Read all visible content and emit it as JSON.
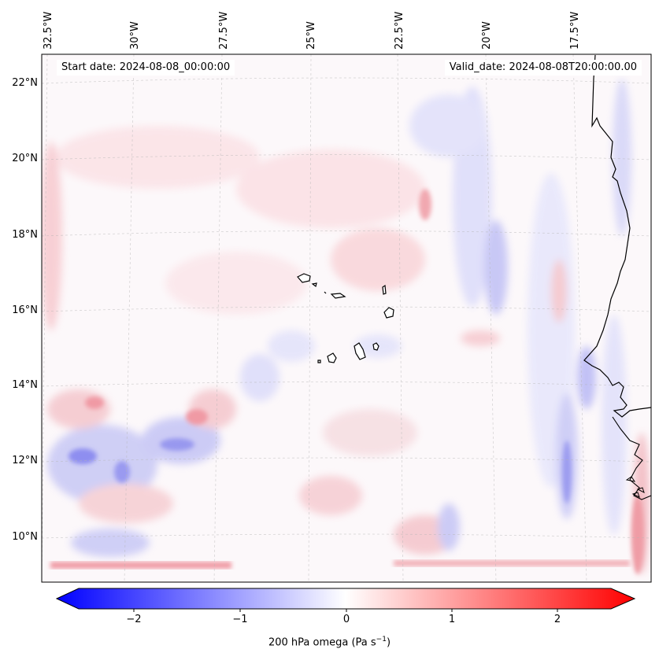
{
  "map": {
    "start_date": "Start date: 2024-08-08_00:00:00",
    "valid_date": "Valid_date: 2024-08-08T20:00:00.00",
    "lon_labels": [
      "32.5°W",
      "30°W",
      "27.5°W",
      "25°W",
      "22.5°W",
      "20°W",
      "17.5°W"
    ],
    "lat_labels": [
      "22°N",
      "20°N",
      "18°N",
      "16°N",
      "14°N",
      "12°N",
      "10°N"
    ]
  },
  "colorbar": {
    "ticks": [
      "−2",
      "−1",
      "0",
      "1",
      "2"
    ],
    "label_main": "200 hPa omega (Pa s",
    "label_sup": "−1",
    "label_end": ")",
    "min_color": "#0000ff",
    "mid_color": "#ffffff",
    "max_color": "#ff0000"
  }
}
